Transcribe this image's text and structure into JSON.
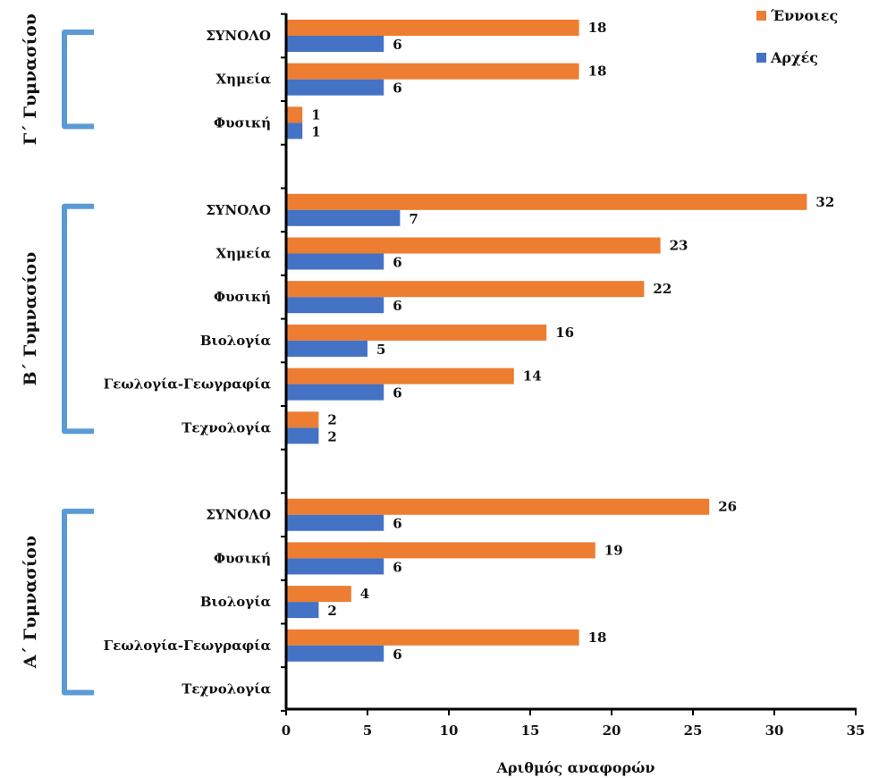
{
  "chart_data": {
    "type": "bar",
    "orientation": "horizontal",
    "xlabel": "Αριθμός αναφορών",
    "xlim": [
      0,
      35
    ],
    "xticks": [
      0,
      5,
      10,
      15,
      20,
      25,
      30,
      35
    ],
    "legend": {
      "placement": "top-right",
      "entries": [
        {
          "name": "Έννοιες",
          "color": "#ED7D31"
        },
        {
          "name": "Αρχές",
          "color": "#4472C4"
        }
      ]
    },
    "groups": [
      {
        "name": "Γ΄ Γυμνασίου",
        "categories": [
          {
            "label": "ΣΥΝΟΛΟ",
            "ennoies": 18,
            "arches": 6
          },
          {
            "label": "Χημεία",
            "ennoies": 18,
            "arches": 6
          },
          {
            "label": "Φυσική",
            "ennoies": 1,
            "arches": 1
          }
        ]
      },
      {
        "name": "Β΄ Γυμνασίου",
        "categories": [
          {
            "label": "ΣΥΝΟΛΟ",
            "ennoies": 32,
            "arches": 7
          },
          {
            "label": "Χημεία",
            "ennoies": 23,
            "arches": 6
          },
          {
            "label": "Φυσική",
            "ennoies": 22,
            "arches": 6
          },
          {
            "label": "Βιολογία",
            "ennoies": 16,
            "arches": 5
          },
          {
            "label": "Γεωλογία-Γεωγραφία",
            "ennoies": 14,
            "arches": 6
          },
          {
            "label": "Τεχνολογία",
            "ennoies": 2,
            "arches": 2
          }
        ]
      },
      {
        "name": "Α΄ Γυμνασίου",
        "categories": [
          {
            "label": "ΣΥΝΟΛΟ",
            "ennoies": 26,
            "arches": 6
          },
          {
            "label": "Φυσική",
            "ennoies": 19,
            "arches": 6
          },
          {
            "label": "Βιολογία",
            "ennoies": 4,
            "arches": 2
          },
          {
            "label": "Γεωλογία-Γεωγραφία",
            "ennoies": 18,
            "arches": 6
          },
          {
            "label": "Τεχνολογία",
            "ennoies": null,
            "arches": null
          }
        ]
      }
    ],
    "colors": {
      "ennoies": "#ED7D31",
      "arches": "#4472C4",
      "bracket": "#5B9BD5",
      "axis": "#000000"
    }
  }
}
